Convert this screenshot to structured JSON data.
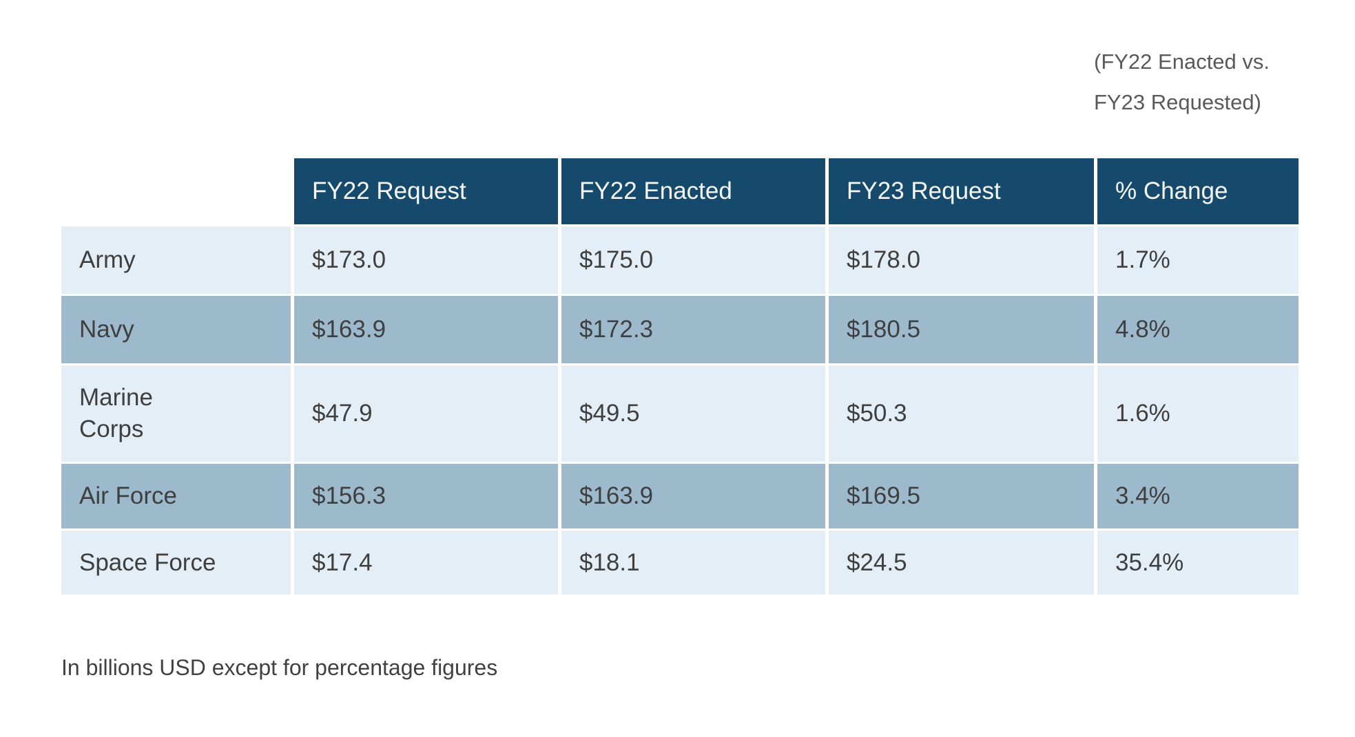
{
  "annotation": {
    "text": "(FY22 Enacted vs.\nFY23 Requested)"
  },
  "table": {
    "columns": [
      "FY22 Request",
      "FY22 Enacted",
      "FY23 Request",
      "% Change"
    ],
    "rows": [
      {
        "label": "Army",
        "values": [
          "$173.0",
          "$175.0",
          "$178.0",
          "1.7%"
        ]
      },
      {
        "label": "Navy",
        "values": [
          "$163.9",
          "$172.3",
          "$180.5",
          "4.8%"
        ]
      },
      {
        "label": "Marine\nCorps",
        "values": [
          "$47.9",
          "$49.5",
          "$50.3",
          "1.6%"
        ]
      },
      {
        "label": "Air Force",
        "values": [
          "$156.3",
          "$163.9",
          "$169.5",
          "3.4%"
        ]
      },
      {
        "label": "Space Force",
        "values": [
          "$17.4",
          "$18.1",
          "$24.5",
          "35.4%"
        ]
      }
    ]
  },
  "footnote": "In billions USD except for percentage figures",
  "colors": {
    "header_bg": "#164A6D",
    "header_text": "#F5F9FB",
    "row_light": "#E3EEF6",
    "row_dark": "#9CBACC",
    "body_text": "#3F3F3F",
    "annotation_text": "#595959"
  },
  "chart_data": {
    "type": "table",
    "title": "(FY22 Enacted vs. FY23 Requested)",
    "categories": [
      "Army",
      "Navy",
      "Marine Corps",
      "Air Force",
      "Space Force"
    ],
    "series": [
      {
        "name": "FY22 Request",
        "values": [
          173.0,
          163.9,
          47.9,
          156.3,
          17.4
        ]
      },
      {
        "name": "FY22 Enacted",
        "values": [
          175.0,
          172.3,
          49.5,
          163.9,
          18.1
        ]
      },
      {
        "name": "FY23 Request",
        "values": [
          178.0,
          180.5,
          50.3,
          169.5,
          24.5
        ]
      },
      {
        "name": "% Change",
        "values": [
          1.7,
          4.8,
          1.6,
          3.4,
          35.4
        ]
      }
    ],
    "note": "In billions USD except for percentage figures",
    "units": "billions USD"
  }
}
